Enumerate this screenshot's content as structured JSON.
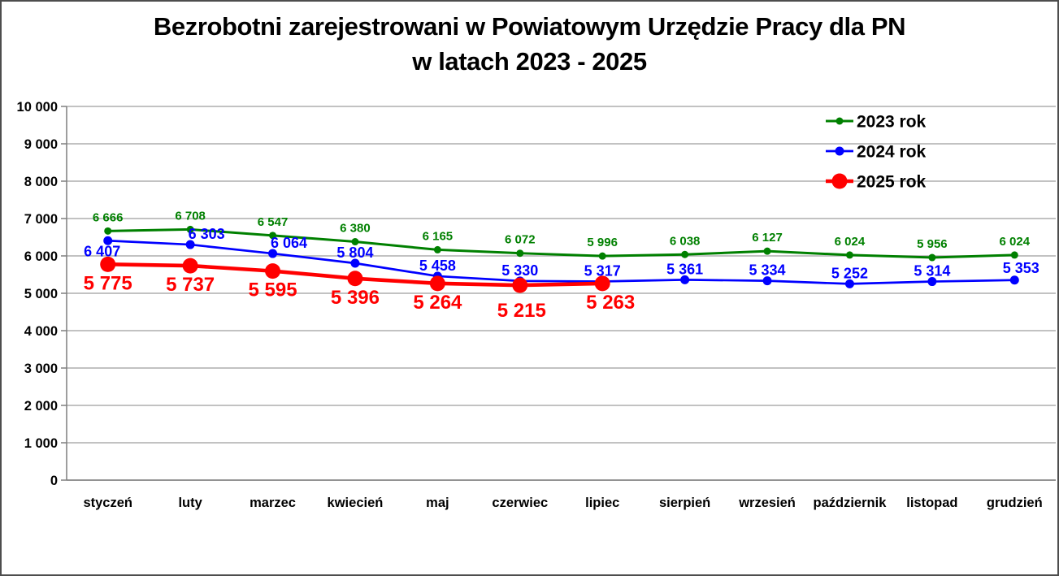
{
  "title": {
    "line1": "Bezrobotni zarejestrowani w Powiatowym Urzędzie Pracy dla PN",
    "line2": "w latach 2023 - 2025"
  },
  "chart_data": {
    "type": "line",
    "title": "Bezrobotni zarejestrowani w Powiatowym Urzędzie Pracy dla PN w latach 2023 - 2025",
    "categories": [
      "styczeń",
      "luty",
      "marzec",
      "kwiecień",
      "maj",
      "czerwiec",
      "lipiec",
      "sierpień",
      "wrzesień",
      "październik",
      "listopad",
      "grudzień"
    ],
    "series": [
      {
        "name": "2023 rok",
        "color": "#008000",
        "values": [
          6666,
          6708,
          6547,
          6380,
          6165,
          6072,
          5996,
          6038,
          6127,
          6024,
          5956,
          6024
        ],
        "label_position": "above"
      },
      {
        "name": "2024 rok",
        "color": "#0000ff",
        "values": [
          6407,
          6303,
          6064,
          5804,
          5458,
          5330,
          5317,
          5361,
          5334,
          5252,
          5314,
          5353
        ],
        "label_position": "above",
        "label_offset_overrides": {
          "0": [
            -7,
            19
          ],
          "1": [
            20,
            -7
          ],
          "2": [
            20,
            -7
          ],
          "11": [
            8,
            -9
          ]
        }
      },
      {
        "name": "2025 rok",
        "color": "#ff0000",
        "values": [
          5775,
          5737,
          5595,
          5396,
          5264,
          5215,
          5263
        ],
        "label_position": "below",
        "label_offset_overrides": {
          "5": [
            2,
            39
          ],
          "6": [
            10,
            31
          ]
        }
      }
    ],
    "y_axis": {
      "min": 0,
      "max": 10000,
      "step": 1000,
      "tick_labels": [
        "0",
        "1 000",
        "2 000",
        "3 000",
        "4 000",
        "5 000",
        "6 000",
        "7 000",
        "8 000",
        "9 000",
        "10 000"
      ]
    },
    "legend": {
      "position": "top-right",
      "entries": [
        "2023 rok",
        "2024 rok",
        "2025 rok"
      ]
    },
    "grid": true,
    "number_format": "space-thousands"
  },
  "colors": {
    "series_2023": "#008000",
    "series_2024": "#0000ff",
    "series_2025": "#ff0000",
    "gridline": "#b9b9b9",
    "axis": "#7f7f7f",
    "text": "#000000",
    "border": "#4d4d4d",
    "background": "#ffffff"
  }
}
